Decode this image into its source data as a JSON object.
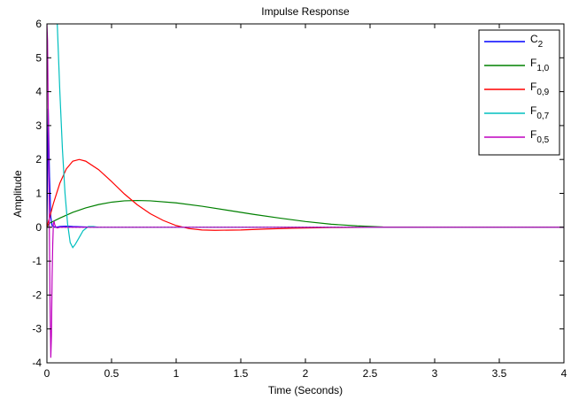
{
  "chart_data": {
    "type": "line",
    "title": "Impulse Response",
    "xlabel": "Time (Seconds)",
    "ylabel": "Amplitude",
    "xlim": [
      0,
      4
    ],
    "ylim": [
      -4,
      6
    ],
    "xticks": [
      0,
      0.5,
      1,
      1.5,
      2,
      2.5,
      3,
      3.5,
      4
    ],
    "xtick_labels": [
      "0",
      "0.5",
      "1",
      "1.5",
      "2",
      "2.5",
      "3",
      "3.5",
      "4"
    ],
    "yticks": [
      -4,
      -3,
      -2,
      -1,
      0,
      1,
      2,
      3,
      4,
      5,
      6
    ],
    "ytick_labels": [
      "-4",
      "-3",
      "-2",
      "-1",
      "0",
      "1",
      "2",
      "3",
      "4",
      "5",
      "6"
    ],
    "grid": false,
    "legend_position": "top-right",
    "series": [
      {
        "name": "C2",
        "label_main": "C",
        "label_sub": "2",
        "color": "#0000ff",
        "x": [
          0,
          0.01,
          0.02,
          0.03,
          0.04,
          0.05,
          0.07,
          0.1,
          0.15,
          0.2,
          0.3,
          0.4
        ],
        "y": [
          0,
          3.5,
          1.5,
          0.3,
          0.05,
          0.02,
          0.0,
          0.02,
          0.03,
          0.02,
          0.01,
          0.0
        ]
      },
      {
        "name": "F1,0",
        "label_main": "F",
        "label_sub": "1,0",
        "color": "#008000",
        "x": [
          0,
          0.02,
          0.1,
          0.2,
          0.3,
          0.4,
          0.5,
          0.6,
          0.7,
          0.8,
          1.0,
          1.2,
          1.4,
          1.6,
          1.8,
          2.0,
          2.2,
          2.4,
          2.6,
          3.0,
          4.0
        ],
        "y": [
          0,
          0.12,
          0.27,
          0.44,
          0.57,
          0.67,
          0.74,
          0.78,
          0.79,
          0.78,
          0.72,
          0.62,
          0.5,
          0.38,
          0.27,
          0.17,
          0.09,
          0.04,
          0.01,
          0.0,
          0.0
        ]
      },
      {
        "name": "F0,9",
        "label_main": "F",
        "label_sub": "0,9",
        "color": "#ff0000",
        "x": [
          0,
          0.05,
          0.1,
          0.15,
          0.2,
          0.25,
          0.3,
          0.4,
          0.5,
          0.6,
          0.7,
          0.8,
          0.9,
          1.0,
          1.1,
          1.2,
          1.3,
          1.5,
          1.7,
          1.9,
          2.2,
          2.6,
          3.0,
          4.0
        ],
        "y": [
          0,
          0.7,
          1.3,
          1.72,
          1.95,
          2.0,
          1.95,
          1.7,
          1.35,
          0.98,
          0.66,
          0.4,
          0.2,
          0.05,
          -0.04,
          -0.08,
          -0.09,
          -0.08,
          -0.05,
          -0.03,
          -0.01,
          0.0,
          0.0,
          0.0
        ]
      },
      {
        "name": "F0,7",
        "label_main": "F",
        "label_sub": "0,7",
        "color": "#00bfbf",
        "x": [
          0.08,
          0.1,
          0.12,
          0.14,
          0.16,
          0.18,
          0.2,
          0.22,
          0.25,
          0.28,
          0.32,
          0.36,
          0.4,
          0.5,
          0.7,
          1.0,
          2.0,
          4.0
        ],
        "y": [
          6.0,
          4.0,
          2.3,
          1.0,
          0.1,
          -0.45,
          -0.6,
          -0.5,
          -0.3,
          -0.1,
          0.02,
          0.02,
          0.0,
          0.0,
          0.0,
          0.0,
          0.0,
          0.0
        ]
      },
      {
        "name": "F0,5",
        "label_main": "F",
        "label_sub": "0,5",
        "color": "#bf00bf",
        "x": [
          0.0,
          0.005,
          0.01,
          0.015,
          0.02,
          0.025,
          0.03,
          0.035,
          0.04,
          0.045,
          0.05,
          0.055,
          0.06,
          0.07,
          0.08,
          0.1,
          0.2,
          0.5,
          1.0,
          2.0,
          4.0
        ],
        "y": [
          6.0,
          5.5,
          3.5,
          1.5,
          -0.5,
          -2.5,
          -3.85,
          -3.2,
          -1.5,
          -0.5,
          0.1,
          0.18,
          0.08,
          0.0,
          -0.02,
          0.0,
          0.0,
          0.0,
          0.0,
          0.0,
          0.0
        ]
      }
    ]
  }
}
